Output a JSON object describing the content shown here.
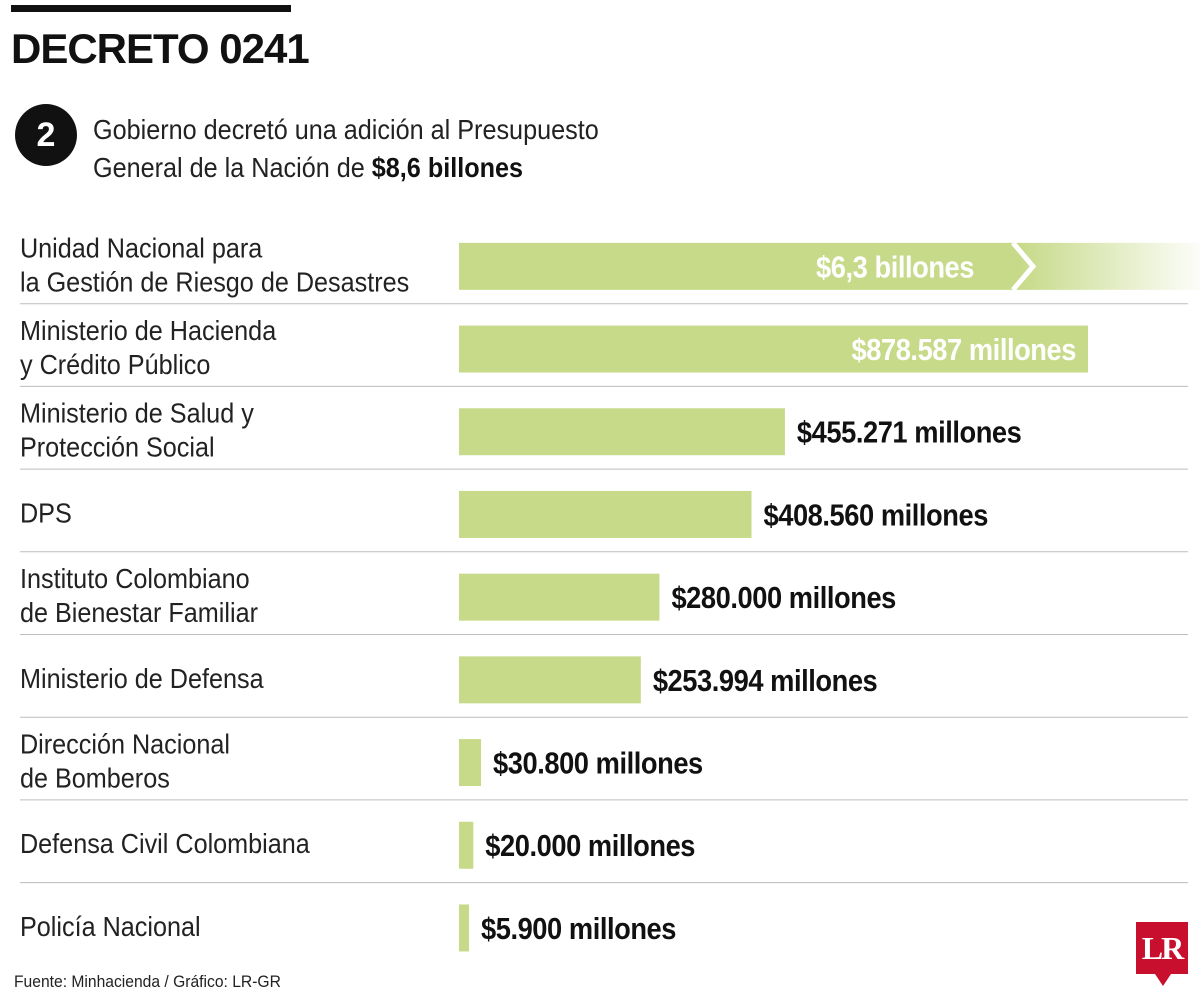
{
  "header": {
    "title": "DECRETO 0241",
    "badge": "2",
    "subtitle_text": "Gobierno decretó una adición al Presupuesto General de la Nación de ",
    "subtitle_highlight": "$8,6 billones"
  },
  "colors": {
    "bar": "#c7da89",
    "bar_label_inside": "#ffffff",
    "bar_label_outside": "#111111",
    "divider": "#bdbdbd",
    "logo": "#c8102e"
  },
  "chart_data": {
    "type": "bar",
    "orientation": "horizontal",
    "unit": "millones de pesos",
    "note": "The first bar is drawn truncated (axis break) because its value exceeds the scale.",
    "categories": [
      "Unidad Nacional para la Gestión de Riesgo de Desastres",
      "Ministerio de Hacienda y Crédito Público",
      "Ministerio de Salud y Protección Social",
      "DPS",
      "Instituto Colombiano de Bienestar Familiar",
      "Ministerio de Defensa",
      "Dirección Nacional de Bomberos",
      "Defensa Civil Colombiana",
      "Policía Nacional"
    ],
    "category_lines": [
      [
        "Unidad Nacional para",
        "la Gestión de Riesgo de Desastres"
      ],
      [
        "Ministerio de Hacienda",
        "y Crédito Público"
      ],
      [
        "Ministerio de Salud y",
        "Protección Social"
      ],
      [
        "DPS"
      ],
      [
        "Instituto Colombiano",
        "de Bienestar Familiar"
      ],
      [
        "Ministerio de Defensa"
      ],
      [
        "Dirección Nacional",
        "de Bomberos"
      ],
      [
        "Defensa Civil Colombiana"
      ],
      [
        "Policía Nacional"
      ]
    ],
    "values": [
      6300000,
      878587,
      455271,
      408560,
      280000,
      253994,
      30800,
      20000,
      5900
    ],
    "value_labels": [
      "$6,3 billones",
      "$878.587 millones",
      "$455.271 millones",
      "$408.560 millones",
      "$280.000 millones",
      "$253.994 millones",
      "$30.800 millones",
      "$20.000 millones",
      "$5.900 millones"
    ],
    "axis_max": 878587,
    "truncated": [
      true,
      false,
      false,
      false,
      false,
      false,
      false,
      false,
      false
    ],
    "grid": false,
    "legend": "none"
  },
  "footer": {
    "source": "Fuente: Minhacienda / Gráfico: LR-GR",
    "logo_text": "LR"
  }
}
